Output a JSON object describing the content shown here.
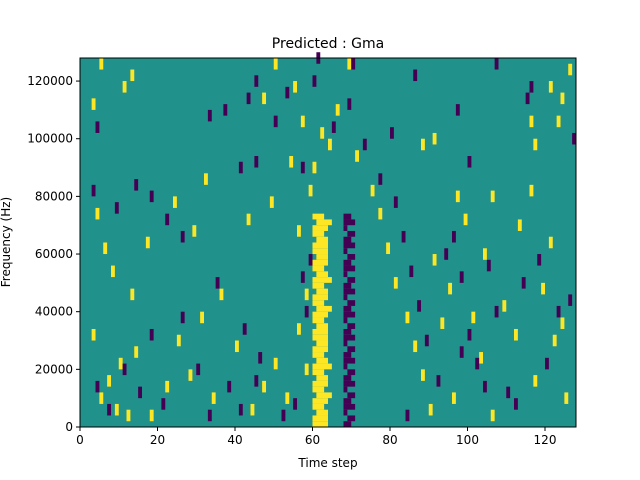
{
  "chart_data": {
    "type": "heatmap",
    "title": "Predicted : Gma",
    "xlabel": "Time step",
    "ylabel": "Frequency (Hz)",
    "xlim": [
      0,
      128
    ],
    "ylim": [
      0,
      128000
    ],
    "x_ticks": [
      0,
      20,
      40,
      60,
      80,
      100,
      120
    ],
    "y_ticks": [
      0,
      20000,
      40000,
      60000,
      80000,
      100000,
      120000
    ],
    "x_tick_labels": [
      "0",
      "20",
      "40",
      "60",
      "80",
      "100",
      "120"
    ],
    "y_tick_labels": [
      "0",
      "20000",
      "40000",
      "60000",
      "80000",
      "100000",
      "120000"
    ],
    "colormap": "viridis",
    "colors": {
      "background": "#21918c",
      "high": "#fde725",
      "low": "#440154"
    },
    "bins": {
      "time_steps": 128,
      "frequency_bins": 64,
      "bin_hz": 2000
    },
    "grid": false,
    "note_low_value_cells": "dark purple cells",
    "band": {
      "time_start": 60,
      "time_end": 64,
      "freq_max": 74000
    },
    "dark_band": {
      "time_start": 68,
      "time_end": 72,
      "freq_max": 74000
    },
    "cells": [
      [
        5,
        8000,
        "high"
      ],
      [
        7,
        14000,
        "high"
      ],
      [
        9,
        4000,
        "high"
      ],
      [
        10,
        20000,
        "high"
      ],
      [
        12,
        2000,
        "high"
      ],
      [
        14,
        24000,
        "high"
      ],
      [
        18,
        2000,
        "high"
      ],
      [
        22,
        12000,
        "high"
      ],
      [
        25,
        28000,
        "high"
      ],
      [
        28,
        16000,
        "high"
      ],
      [
        31,
        36000,
        "high"
      ],
      [
        34,
        8000,
        "high"
      ],
      [
        36,
        44000,
        "high"
      ],
      [
        40,
        26000,
        "high"
      ],
      [
        44,
        4000,
        "high"
      ],
      [
        47,
        12000,
        "high"
      ],
      [
        50,
        20000,
        "high"
      ],
      [
        53,
        8000,
        "high"
      ],
      [
        56,
        32000,
        "high"
      ],
      [
        58,
        18000,
        "high"
      ],
      [
        3,
        30000,
        "high"
      ],
      [
        6,
        60000,
        "high"
      ],
      [
        4,
        72000,
        "high"
      ],
      [
        8,
        52000,
        "high"
      ],
      [
        13,
        44000,
        "high"
      ],
      [
        17,
        62000,
        "high"
      ],
      [
        24,
        76000,
        "high"
      ],
      [
        29,
        66000,
        "high"
      ],
      [
        32,
        84000,
        "high"
      ],
      [
        43,
        70000,
        "high"
      ],
      [
        49,
        76000,
        "high"
      ],
      [
        54,
        90000,
        "high"
      ],
      [
        56,
        66000,
        "high"
      ],
      [
        58,
        44000,
        "high"
      ],
      [
        59,
        80000,
        "high"
      ],
      [
        60,
        88000,
        "high"
      ],
      [
        62,
        100000,
        "high"
      ],
      [
        64,
        96000,
        "high"
      ],
      [
        66,
        108000,
        "high"
      ],
      [
        69,
        124000,
        "high"
      ],
      [
        71,
        92000,
        "high"
      ],
      [
        3,
        110000,
        "high"
      ],
      [
        5,
        124000,
        "high"
      ],
      [
        11,
        116000,
        "high"
      ],
      [
        13,
        120000,
        "high"
      ],
      [
        47,
        112000,
        "high"
      ],
      [
        50,
        124000,
        "high"
      ],
      [
        55,
        116000,
        "high"
      ],
      [
        57,
        104000,
        "high"
      ],
      [
        75,
        80000,
        "high"
      ],
      [
        77,
        72000,
        "high"
      ],
      [
        79,
        60000,
        "high"
      ],
      [
        81,
        48000,
        "high"
      ],
      [
        84,
        36000,
        "high"
      ],
      [
        86,
        26000,
        "high"
      ],
      [
        88,
        16000,
        "high"
      ],
      [
        90,
        4000,
        "high"
      ],
      [
        91,
        56000,
        "high"
      ],
      [
        93,
        34000,
        "high"
      ],
      [
        95,
        46000,
        "high"
      ],
      [
        96,
        8000,
        "high"
      ],
      [
        99,
        70000,
        "high"
      ],
      [
        101,
        36000,
        "high"
      ],
      [
        103,
        22000,
        "high"
      ],
      [
        104,
        58000,
        "high"
      ],
      [
        106,
        78000,
        "high"
      ],
      [
        109,
        40000,
        "high"
      ],
      [
        112,
        30000,
        "high"
      ],
      [
        113,
        68000,
        "high"
      ],
      [
        116,
        80000,
        "high"
      ],
      [
        117,
        14000,
        "high"
      ],
      [
        119,
        46000,
        "high"
      ],
      [
        121,
        62000,
        "high"
      ],
      [
        122,
        28000,
        "high"
      ],
      [
        124,
        34000,
        "high"
      ],
      [
        125,
        8000,
        "high"
      ],
      [
        116,
        104000,
        "high"
      ],
      [
        117,
        96000,
        "high"
      ],
      [
        121,
        116000,
        "high"
      ],
      [
        123,
        104000,
        "high"
      ],
      [
        124,
        112000,
        "high"
      ],
      [
        126,
        122000,
        "high"
      ],
      [
        106,
        2000,
        "high"
      ],
      [
        97,
        78000,
        "high"
      ],
      [
        88,
        96000,
        "high"
      ],
      [
        91,
        98000,
        "high"
      ],
      [
        4,
        12000,
        "low"
      ],
      [
        7,
        4000,
        "low"
      ],
      [
        11,
        18000,
        "low"
      ],
      [
        15,
        10000,
        "low"
      ],
      [
        18,
        30000,
        "low"
      ],
      [
        21,
        6000,
        "low"
      ],
      [
        26,
        36000,
        "low"
      ],
      [
        30,
        18000,
        "low"
      ],
      [
        33,
        2000,
        "low"
      ],
      [
        38,
        12000,
        "low"
      ],
      [
        41,
        4000,
        "low"
      ],
      [
        45,
        14000,
        "low"
      ],
      [
        52,
        2000,
        "low"
      ],
      [
        55,
        6000,
        "low"
      ],
      [
        57,
        50000,
        "low"
      ],
      [
        58,
        38000,
        "low"
      ],
      [
        59,
        56000,
        "low"
      ],
      [
        46,
        22000,
        "low"
      ],
      [
        42,
        32000,
        "low"
      ],
      [
        35,
        48000,
        "low"
      ],
      [
        26,
        64000,
        "low"
      ],
      [
        22,
        70000,
        "low"
      ],
      [
        18,
        78000,
        "low"
      ],
      [
        3,
        80000,
        "low"
      ],
      [
        9,
        74000,
        "low"
      ],
      [
        14,
        82000,
        "low"
      ],
      [
        41,
        88000,
        "low"
      ],
      [
        45,
        90000,
        "low"
      ],
      [
        57,
        88000,
        "low"
      ],
      [
        4,
        102000,
        "low"
      ],
      [
        33,
        106000,
        "low"
      ],
      [
        37,
        108000,
        "low"
      ],
      [
        43,
        112000,
        "low"
      ],
      [
        45,
        118000,
        "low"
      ],
      [
        50,
        104000,
        "low"
      ],
      [
        53,
        114000,
        "low"
      ],
      [
        60,
        118000,
        "low"
      ],
      [
        65,
        102000,
        "low"
      ],
      [
        69,
        110000,
        "low"
      ],
      [
        73,
        96000,
        "low"
      ],
      [
        61,
        126000,
        "low"
      ],
      [
        70,
        124000,
        "low"
      ],
      [
        77,
        84000,
        "low"
      ],
      [
        81,
        76000,
        "low"
      ],
      [
        83,
        64000,
        "low"
      ],
      [
        85,
        52000,
        "low"
      ],
      [
        87,
        40000,
        "low"
      ],
      [
        89,
        28000,
        "low"
      ],
      [
        92,
        14000,
        "low"
      ],
      [
        94,
        58000,
        "low"
      ],
      [
        96,
        64000,
        "low"
      ],
      [
        98,
        50000,
        "low"
      ],
      [
        100,
        30000,
        "low"
      ],
      [
        102,
        20000,
        "low"
      ],
      [
        105,
        54000,
        "low"
      ],
      [
        107,
        38000,
        "low"
      ],
      [
        110,
        10000,
        "low"
      ],
      [
        114,
        48000,
        "low"
      ],
      [
        118,
        56000,
        "low"
      ],
      [
        120,
        20000,
        "low"
      ],
      [
        123,
        38000,
        "low"
      ],
      [
        126,
        42000,
        "low"
      ],
      [
        116,
        116000,
        "low"
      ],
      [
        107,
        124000,
        "low"
      ],
      [
        115,
        112000,
        "low"
      ],
      [
        97,
        108000,
        "low"
      ],
      [
        100,
        90000,
        "low"
      ],
      [
        86,
        120000,
        "low"
      ],
      [
        80,
        100000,
        "low"
      ],
      [
        127,
        98000,
        "low"
      ],
      [
        84,
        2000,
        "low"
      ],
      [
        112,
        6000,
        "low"
      ],
      [
        98,
        24000,
        "low"
      ],
      [
        104,
        12000,
        "low"
      ]
    ]
  }
}
